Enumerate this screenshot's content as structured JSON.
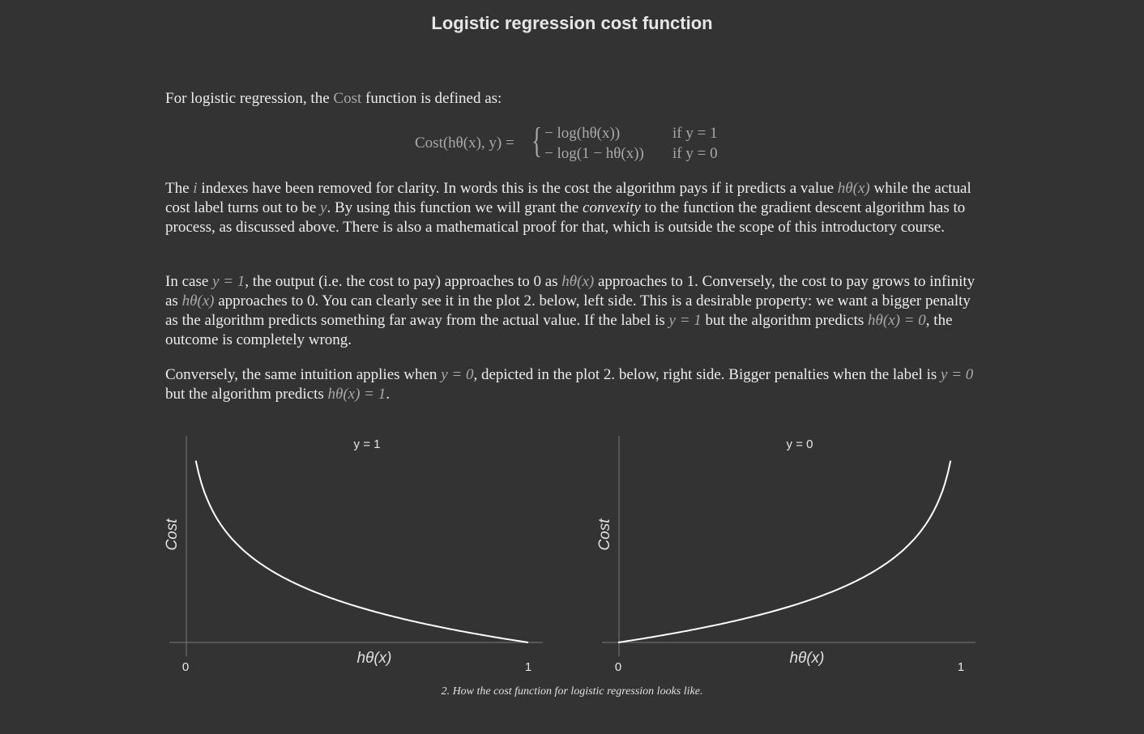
{
  "page": {
    "title": "Logistic regression cost function"
  },
  "intro": {
    "before": "For logistic regression, the ",
    "cost_word": "Cost",
    "after": " function is defined as:"
  },
  "formula": {
    "lhs": "Cost(hθ(x), y) =",
    "case1": "− log(hθ(x))",
    "cond1": "if y = 1",
    "case2": "− log(1 − hθ(x))",
    "cond2": "if y = 0"
  },
  "para2": {
    "a": "The ",
    "i": "i",
    "b": " indexes have been removed for clarity. In words this is the cost the algorithm pays if it predicts a value ",
    "hx": "hθ(x)",
    "c": " while the actual cost label turns out to be ",
    "y": "y",
    "d": ". By using this function we will grant the ",
    "convexity": "convexity",
    "e": " to the function the gradient descent algorithm has to process, as discussed above. There is also a mathematical proof for that, which is outside the scope of this introductory course."
  },
  "para3": {
    "a": "In case ",
    "y1": "y = 1",
    "b": ", the output (i.e. the cost to pay) approaches to 0 as ",
    "hx1": "hθ(x)",
    "c": " approaches to 1. Conversely, the cost to pay grows to infinity as ",
    "hx2": "hθ(x)",
    "d": " approaches to 0. You can clearly see it in the plot 2. below, left side. This is a desirable property: we want a bigger penalty as the algorithm predicts something far away from the actual value. If the label is ",
    "y1b": "y = 1",
    "e": " but the algorithm predicts ",
    "hx0": "hθ(x) = 0",
    "f": ", the outcome is completely wrong."
  },
  "para4": {
    "a": "Conversely, the same intuition applies when ",
    "y0": "y = 0",
    "b": ", depicted in the plot 2. below, right side. Bigger penalties when the label is ",
    "y0b": "y = 0",
    "c": " but the algorithm predicts ",
    "hx1": "hθ(x) = 1",
    "d": "."
  },
  "chart_data": [
    {
      "type": "line",
      "title": "y = 1",
      "xlabel": "hθ(x)",
      "ylabel": "Cost",
      "x_ticks": [
        "0",
        "1"
      ],
      "xlim": [
        0,
        1
      ],
      "series": [
        {
          "function": "-log(x)",
          "x": [
            0.03,
            0.05,
            0.1,
            0.2,
            0.3,
            0.4,
            0.5,
            0.6,
            0.7,
            0.8,
            0.9,
            1.0
          ],
          "values": [
            3.51,
            3.0,
            2.3,
            1.61,
            1.2,
            0.92,
            0.69,
            0.51,
            0.36,
            0.22,
            0.11,
            0.0
          ]
        }
      ],
      "line_color": "#ffffff",
      "grid": false
    },
    {
      "type": "line",
      "title": "y = 0",
      "xlabel": "hθ(x)",
      "ylabel": "Cost",
      "x_ticks": [
        "0",
        "1"
      ],
      "xlim": [
        0,
        1
      ],
      "series": [
        {
          "function": "-log(1-x)",
          "x": [
            0.0,
            0.1,
            0.2,
            0.3,
            0.4,
            0.5,
            0.6,
            0.7,
            0.8,
            0.9,
            0.95,
            0.97
          ],
          "values": [
            0.0,
            0.11,
            0.22,
            0.36,
            0.51,
            0.69,
            0.92,
            1.2,
            1.61,
            2.3,
            3.0,
            3.51
          ]
        }
      ],
      "line_color": "#ffffff",
      "grid": false
    }
  ],
  "caption": "2. How the cost function for logistic regression looks like."
}
